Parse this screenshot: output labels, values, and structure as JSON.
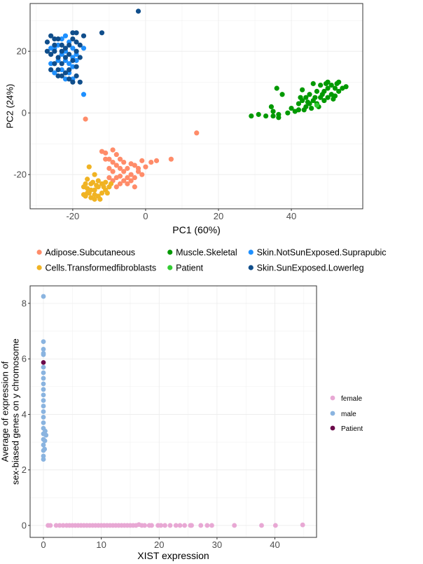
{
  "chart_data": [
    {
      "type": "scatter",
      "xlabel": "PC1 (60%)",
      "ylabel": "PC2 (24%)",
      "xlim": [
        -31.7,
        59.6
      ],
      "ylim": [
        -31.1,
        35.5
      ],
      "xticks": [
        -20,
        0,
        20,
        40
      ],
      "yticks": [
        -20,
        0,
        20
      ],
      "grid": true,
      "legend_placement": "bottom",
      "series": [
        {
          "name": "Adipose.Subcutaneous",
          "color": "#FF8C69",
          "points": [
            [
              -16.5,
              -2
            ],
            [
              14,
              -6.5
            ],
            [
              7,
              -15
            ],
            [
              3,
              -15.5
            ],
            [
              1.5,
              -16
            ],
            [
              -1,
              -15.5
            ],
            [
              -3,
              -17
            ],
            [
              -2,
              -19
            ],
            [
              -4,
              -20
            ],
            [
              -5,
              -21
            ],
            [
              -6,
              -19
            ],
            [
              -7,
              -18
            ],
            [
              -8,
              -17
            ],
            [
              -9,
              -16
            ],
            [
              -10,
              -15
            ],
            [
              -11,
              -13
            ],
            [
              -12,
              -12.5
            ],
            [
              -9,
              -12
            ],
            [
              -8,
              -13.5
            ],
            [
              -6,
              -22
            ],
            [
              -8,
              -24
            ],
            [
              -9,
              -22
            ],
            [
              -10,
              -21
            ],
            [
              -7,
              -20.5
            ],
            [
              -5,
              -18
            ],
            [
              -4,
              -16.5
            ],
            [
              -3,
              -21
            ],
            [
              -2,
              -18
            ],
            [
              -6,
              -16
            ],
            [
              -7,
              -23
            ],
            [
              -9,
              -19
            ],
            [
              -8,
              -21
            ],
            [
              -10,
              -18
            ],
            [
              -11,
              -15
            ],
            [
              0,
              -17.5
            ],
            [
              -1,
              -20
            ],
            [
              -5,
              -23
            ],
            [
              -4,
              -22
            ],
            [
              -3,
              -24
            ],
            [
              -7,
              -15
            ]
          ]
        },
        {
          "name": "Cells.Transformedfibroblasts",
          "color": "#F0B323",
          "points": [
            [
              -15.5,
              -17.5
            ],
            [
              -14,
              -20
            ],
            [
              -16,
              -21.5
            ],
            [
              -17,
              -24
            ],
            [
              -16,
              -26
            ],
            [
              -15,
              -27.5
            ],
            [
              -14,
              -28
            ],
            [
              -13,
              -27
            ],
            [
              -12,
              -26
            ],
            [
              -11,
              -25
            ],
            [
              -10,
              -24
            ],
            [
              -9.5,
              -23
            ],
            [
              -13,
              -24
            ],
            [
              -14,
              -25
            ],
            [
              -15,
              -23
            ],
            [
              -16,
              -24.5
            ],
            [
              -17,
              -26.5
            ],
            [
              -12,
              -23
            ],
            [
              -11,
              -22.5
            ],
            [
              -13,
              -22
            ],
            [
              -14,
              -26.5
            ],
            [
              -15,
              -25
            ],
            [
              -16.5,
              -27
            ],
            [
              -12.5,
              -28
            ],
            [
              -10.5,
              -26
            ],
            [
              -11.5,
              -24
            ],
            [
              -13.5,
              -23.5
            ],
            [
              -14.5,
              -22.5
            ],
            [
              -15.5,
              -26
            ],
            [
              -16.5,
              -23
            ]
          ]
        },
        {
          "name": "Muscle.Skeletal",
          "color": "#009900",
          "points": [
            [
              29,
              -1
            ],
            [
              31,
              -0.5
            ],
            [
              33,
              -1
            ],
            [
              35,
              0.5
            ],
            [
              34.5,
              2
            ],
            [
              36,
              8
            ],
            [
              37.5,
              6
            ],
            [
              36.5,
              -1.5
            ],
            [
              35,
              -1
            ],
            [
              36.5,
              -0.5
            ],
            [
              39,
              0
            ],
            [
              40,
              1.5
            ],
            [
              41,
              0.5
            ],
            [
              42,
              1
            ],
            [
              42,
              3
            ],
            [
              43,
              4
            ],
            [
              43,
              7.5
            ],
            [
              44,
              2
            ],
            [
              44,
              5
            ],
            [
              45,
              3
            ],
            [
              45,
              6
            ],
            [
              46,
              4
            ],
            [
              46,
              9.5
            ],
            [
              47,
              3
            ],
            [
              47,
              7
            ],
            [
              48,
              5
            ],
            [
              48,
              9
            ],
            [
              49,
              4
            ],
            [
              49,
              7
            ],
            [
              50,
              5
            ],
            [
              50,
              8
            ],
            [
              50,
              10
            ],
            [
              51,
              6
            ],
            [
              51,
              9
            ],
            [
              52,
              5.5
            ],
            [
              52,
              8
            ],
            [
              53,
              7
            ],
            [
              53,
              10
            ],
            [
              54,
              8
            ],
            [
              55,
              8.5
            ],
            [
              44.5,
              3.5
            ],
            [
              46.5,
              5
            ],
            [
              48.5,
              6
            ],
            [
              47.5,
              2
            ],
            [
              45.5,
              1.5
            ],
            [
              43.5,
              1
            ],
            [
              52.5,
              9.5
            ],
            [
              51.5,
              4.5
            ],
            [
              49.5,
              9.5
            ],
            [
              42.5,
              5
            ]
          ]
        },
        {
          "name": "Patient",
          "color": "#33CC33",
          "points": [
            [
              47,
              2.5
            ]
          ]
        },
        {
          "name": "Skin.NotSunExposed.Suprapubic",
          "color": "#1E90FF",
          "points": [
            [
              -17,
              6
            ],
            [
              -22,
              25
            ],
            [
              -21,
              23
            ],
            [
              -20,
              21
            ],
            [
              -17,
              21
            ],
            [
              -19,
              19
            ],
            [
              -23,
              19
            ],
            [
              -25,
              21
            ],
            [
              -24,
              17
            ],
            [
              -22,
              17
            ],
            [
              -20,
              15
            ],
            [
              -21,
              13
            ],
            [
              -22,
              11
            ],
            [
              -23,
              14
            ],
            [
              -26,
              16
            ],
            [
              -24,
              22
            ],
            [
              -22,
              20
            ],
            [
              -20,
              18
            ],
            [
              -21,
              16
            ],
            [
              -19,
              17
            ],
            [
              -25,
              13
            ],
            [
              -23,
              24
            ],
            [
              -26,
              21
            ],
            [
              -20,
              11
            ]
          ]
        },
        {
          "name": "Skin.SunExposed.Lowerleg",
          "color": "#104E8B",
          "points": [
            [
              -2,
              33
            ],
            [
              -12,
              26
            ],
            [
              -19,
              26
            ],
            [
              -20,
              26
            ],
            [
              -17,
              25
            ],
            [
              -27,
              23
            ],
            [
              -26,
              25
            ],
            [
              -25,
              22
            ],
            [
              -26,
              19
            ],
            [
              -27,
              20
            ],
            [
              -25,
              16
            ],
            [
              -24,
              14
            ],
            [
              -23,
              12
            ],
            [
              -22,
              13
            ],
            [
              -21,
              11
            ],
            [
              -20,
              10
            ],
            [
              -18,
              10
            ],
            [
              -19,
              12
            ],
            [
              -19,
              20
            ],
            [
              -18,
              18
            ],
            [
              -18,
              22
            ],
            [
              -19,
              23
            ],
            [
              -20,
              24
            ],
            [
              -21,
              22
            ],
            [
              -22,
              21
            ],
            [
              -23,
              20
            ],
            [
              -24,
              18
            ],
            [
              -25,
              20
            ],
            [
              -24,
              24
            ],
            [
              -23,
              22
            ],
            [
              -22,
              18
            ],
            [
              -21,
              19
            ],
            [
              -20,
              17
            ],
            [
              -19,
              15
            ],
            [
              -21,
              14
            ],
            [
              -23,
              16
            ],
            [
              -24,
              12
            ],
            [
              -26,
              14
            ],
            [
              -25,
              24
            ]
          ]
        }
      ]
    },
    {
      "type": "scatter",
      "xlabel": "XIST expression",
      "ylabel": "Average of expression of\nsex-biased genes on y chromosome",
      "ylabel_lines": [
        "Average of expression of",
        "sex-biased genes on y chromosome"
      ],
      "xlim": [
        -2.3,
        47.2
      ],
      "ylim": [
        -0.43,
        8.63
      ],
      "xticks": [
        0,
        10,
        20,
        30,
        40
      ],
      "yticks": [
        0,
        2,
        4,
        6,
        8
      ],
      "grid": true,
      "legend_placement": "right",
      "series": [
        {
          "name": "female",
          "color": "#E8A8D4",
          "points": [
            [
              0.8,
              0
            ],
            [
              1.2,
              0
            ],
            [
              2.2,
              0
            ],
            [
              2.8,
              0
            ],
            [
              3.4,
              0
            ],
            [
              4,
              0
            ],
            [
              4.5,
              0
            ],
            [
              5,
              0
            ],
            [
              5.5,
              0
            ],
            [
              6,
              0
            ],
            [
              6.5,
              0
            ],
            [
              7,
              0
            ],
            [
              7.5,
              0
            ],
            [
              8,
              0
            ],
            [
              8.5,
              0
            ],
            [
              9,
              0
            ],
            [
              9.5,
              0
            ],
            [
              10,
              0
            ],
            [
              10.5,
              0
            ],
            [
              11,
              0
            ],
            [
              11.5,
              0
            ],
            [
              12,
              0
            ],
            [
              12.5,
              0
            ],
            [
              13,
              0
            ],
            [
              13.5,
              0
            ],
            [
              14,
              0
            ],
            [
              14.5,
              0
            ],
            [
              15,
              0
            ],
            [
              15.5,
              0
            ],
            [
              16,
              0
            ],
            [
              16.5,
              0.03
            ],
            [
              17,
              0
            ],
            [
              17.5,
              0
            ],
            [
              18.3,
              0
            ],
            [
              18.7,
              0
            ],
            [
              19.8,
              0
            ],
            [
              20.3,
              0
            ],
            [
              21,
              0
            ],
            [
              21.9,
              0
            ],
            [
              22.9,
              0
            ],
            [
              23.6,
              0
            ],
            [
              24.4,
              0
            ],
            [
              25.4,
              0
            ],
            [
              25.6,
              0
            ],
            [
              27.2,
              0
            ],
            [
              28.3,
              0
            ],
            [
              29.1,
              0
            ],
            [
              33,
              0
            ],
            [
              37.7,
              0
            ],
            [
              40.1,
              0
            ],
            [
              44.8,
              0.02
            ]
          ]
        },
        {
          "name": "male",
          "color": "#8AB4E0",
          "points": [
            [
              0,
              8.25
            ],
            [
              0,
              6.62
            ],
            [
              0,
              6.35
            ],
            [
              0,
              6.2
            ],
            [
              0,
              6.15
            ],
            [
              0,
              5.7
            ],
            [
              0,
              5.5
            ],
            [
              0,
              5.3
            ],
            [
              0,
              5.1
            ],
            [
              0,
              4.9
            ],
            [
              0,
              4.7
            ],
            [
              0,
              4.5
            ],
            [
              0,
              4.3
            ],
            [
              0,
              4.1
            ],
            [
              0,
              3.9
            ],
            [
              0,
              3.7
            ],
            [
              0,
              3.5
            ],
            [
              0,
              3.3
            ],
            [
              0,
              3.1
            ],
            [
              0,
              2.9
            ],
            [
              0,
              2.7
            ],
            [
              0,
              2.5
            ],
            [
              0,
              2.38
            ],
            [
              0.3,
              3.4
            ],
            [
              0.45,
              3.25
            ],
            [
              0.25,
              3.05
            ],
            [
              0.2,
              2.75
            ]
          ]
        },
        {
          "name": "Patient",
          "color": "#6B0A4A",
          "points": [
            [
              0,
              5.87
            ]
          ]
        }
      ]
    }
  ]
}
